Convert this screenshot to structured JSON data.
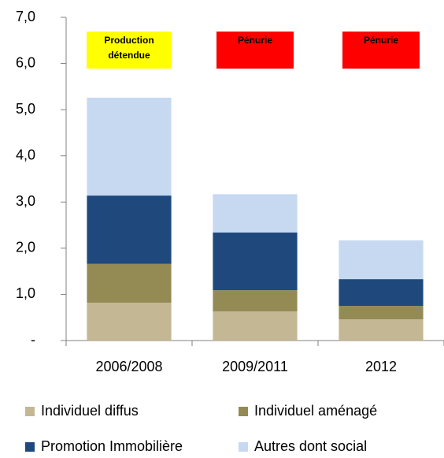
{
  "chart_data": {
    "type": "stacked_bar",
    "categories": [
      "2006/2008",
      "2009/2011",
      "2012"
    ],
    "series": [
      {
        "name": "Individuel diffus",
        "color": "#c4b793",
        "values": [
          0.82,
          0.63,
          0.46
        ]
      },
      {
        "name": "Individuel aménagé",
        "color": "#948a54",
        "values": [
          0.84,
          0.46,
          0.29
        ]
      },
      {
        "name": "Promotion Immobilière",
        "color": "#1f497d",
        "values": [
          1.48,
          1.25,
          0.58
        ]
      },
      {
        "name": "Autres dont social",
        "color": "#c6d9f1",
        "values": [
          2.12,
          0.83,
          0.84
        ]
      }
    ],
    "annotations": [
      {
        "text": "Production détendue",
        "color": "#ffff00"
      },
      {
        "text": "Pénurie",
        "color": "#ff0000"
      },
      {
        "text": "Pénurie",
        "color": "#ff0000"
      }
    ],
    "ylim": [
      0,
      7
    ],
    "yticks": [
      {
        "value": 0,
        "label": "-"
      },
      {
        "value": 1,
        "label": "1,0"
      },
      {
        "value": 2,
        "label": "2,0"
      },
      {
        "value": 3,
        "label": "3,0"
      },
      {
        "value": 4,
        "label": "4,0"
      },
      {
        "value": 5,
        "label": "5,0"
      },
      {
        "value": 6,
        "label": "6,0"
      },
      {
        "value": 7,
        "label": "7,0"
      }
    ],
    "grid": false
  }
}
